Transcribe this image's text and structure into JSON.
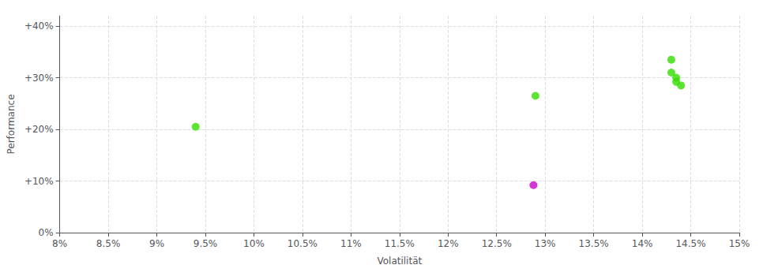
{
  "chart_data": {
    "type": "scatter",
    "xlabel": "Volatilität",
    "ylabel": "Performance",
    "xlim": [
      0.08,
      0.15
    ],
    "ylim": [
      0.0,
      0.42
    ],
    "xticks": [
      {
        "value": 0.08,
        "label": "8%"
      },
      {
        "value": 0.085,
        "label": "8.5%"
      },
      {
        "value": 0.09,
        "label": "9%"
      },
      {
        "value": 0.095,
        "label": "9.5%"
      },
      {
        "value": 0.1,
        "label": "10%"
      },
      {
        "value": 0.105,
        "label": "10.5%"
      },
      {
        "value": 0.11,
        "label": "11%"
      },
      {
        "value": 0.115,
        "label": "11.5%"
      },
      {
        "value": 0.12,
        "label": "12%"
      },
      {
        "value": 0.125,
        "label": "12.5%"
      },
      {
        "value": 0.13,
        "label": "13%"
      },
      {
        "value": 0.135,
        "label": "13.5%"
      },
      {
        "value": 0.14,
        "label": "14%"
      },
      {
        "value": 0.145,
        "label": "14.5%"
      },
      {
        "value": 0.15,
        "label": "15%"
      }
    ],
    "yticks": [
      {
        "value": 0.0,
        "label": "0%"
      },
      {
        "value": 0.1,
        "label": "+10%"
      },
      {
        "value": 0.2,
        "label": "+20%"
      },
      {
        "value": 0.3,
        "label": "+30%"
      },
      {
        "value": 0.4,
        "label": "+40%"
      }
    ],
    "grid": true,
    "series": [
      {
        "color": "#33dd00",
        "x": [
          0.094,
          0.129,
          0.143,
          0.143,
          0.1435,
          0.1435,
          0.144
        ],
        "values": [
          0.205,
          0.265,
          0.335,
          0.31,
          0.3,
          0.292,
          0.285
        ]
      },
      {
        "color": "#cc00cc",
        "x": [
          0.1288
        ],
        "values": [
          0.092
        ]
      }
    ]
  }
}
